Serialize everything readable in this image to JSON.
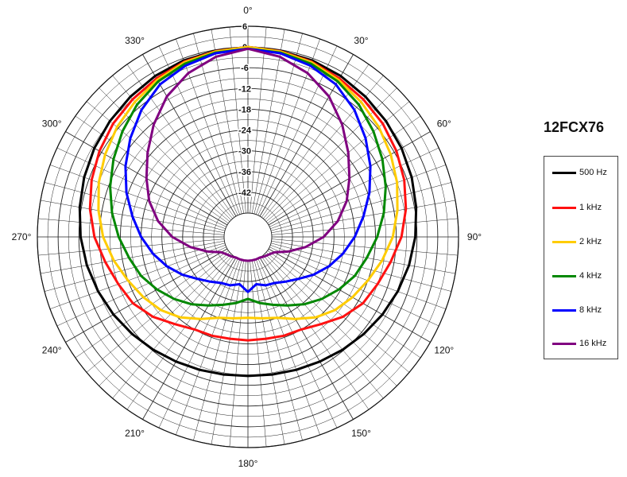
{
  "chart_data": {
    "type": "polar",
    "title": "12FCX76",
    "angle_labels": [
      "0°",
      "30°",
      "60°",
      "90°",
      "120°",
      "150°",
      "180°",
      "210°",
      "240°",
      "270°",
      "300°",
      "330°"
    ],
    "radial_labels": [
      "6",
      "0",
      "-6",
      "-12",
      "-18",
      "-24",
      "-30",
      "-36",
      "-42"
    ],
    "rlim": [
      -48,
      6
    ],
    "grid": true,
    "legend_position": "right",
    "angles_deg": [
      0,
      10,
      20,
      30,
      40,
      50,
      60,
      70,
      80,
      90,
      100,
      110,
      120,
      130,
      140,
      150,
      160,
      170,
      180
    ],
    "series": [
      {
        "name": "500 Hz",
        "color": "#000000",
        "values": [
          0,
          -0.3,
          -0.6,
          -1.2,
          -2,
          -2.8,
          -3.6,
          -4.5,
          -5.5,
          -6.5,
          -7.6,
          -8.8,
          -10,
          -11.2,
          -12.3,
          -13.3,
          -14,
          -14.5,
          -14.7
        ]
      },
      {
        "name": "1 kHz",
        "color": "#ff1111",
        "values": [
          0,
          -0.4,
          -1,
          -2,
          -3,
          -4,
          -5.3,
          -6.8,
          -8.5,
          -10.5,
          -13,
          -15,
          -16.5,
          -19,
          -22,
          -24,
          -24.5,
          -25,
          -25
        ]
      },
      {
        "name": "2 kHz",
        "color": "#ffcc00",
        "values": [
          0,
          -0.5,
          -1.2,
          -2.5,
          -4,
          -5.5,
          -7.2,
          -9,
          -11,
          -13,
          -15.5,
          -18,
          -20,
          -22,
          -24.5,
          -27.5,
          -30,
          -31,
          -31.5
        ]
      },
      {
        "name": "4 kHz",
        "color": "#008800",
        "values": [
          -0.5,
          -0.8,
          -1.6,
          -3,
          -5,
          -7.5,
          -10,
          -12.5,
          -15,
          -17.5,
          -20,
          -22,
          -24.5,
          -27,
          -29.5,
          -32,
          -34,
          -35.5,
          -37
        ]
      },
      {
        "name": "8 kHz",
        "color": "#0000ff",
        "values": [
          -0.5,
          -1,
          -2.2,
          -4,
          -7,
          -10.5,
          -14,
          -17.5,
          -21,
          -24,
          -27,
          -30,
          -33,
          -36,
          -38,
          -39.5,
          -40,
          -41,
          -39
        ]
      },
      {
        "name": "16 kHz",
        "color": "#800080",
        "values": [
          -0.5,
          -2,
          -4.5,
          -8,
          -12.5,
          -17,
          -21,
          -24.5,
          -28.5,
          -33,
          -38,
          -42.5,
          -46,
          -47,
          -47.5,
          -48,
          -48,
          -48,
          -48
        ]
      }
    ]
  }
}
